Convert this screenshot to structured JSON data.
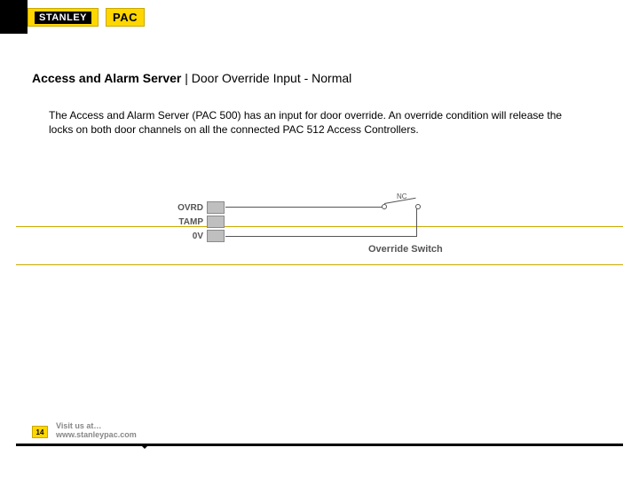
{
  "brand": {
    "stanley": "STANLEY",
    "pac": "PAC"
  },
  "heading": {
    "bold": "Access and Alarm Server",
    "rest": " | Door Override Input - Normal"
  },
  "paragraph": "The Access and Alarm Server (PAC 500) has an input for door override. An override condition will release the locks on both door channels on all the connected PAC 512 Access Controllers.",
  "diagram": {
    "type": "schematic",
    "terminal_labels": [
      "OVRD",
      "TAMP",
      "0V"
    ],
    "switch_label": "Override Switch",
    "switch_type_label": "NC",
    "connector_color": "#bfbfbf",
    "connector_border": "#8a8a8a",
    "wire_color": "#555555",
    "label_color": "#555555",
    "band_border_color": "#c9a800",
    "label_fontsize": 10
  },
  "footer": {
    "page_number": "14",
    "visit_line1": "Visit us at…",
    "visit_line2": "www.stanleypac.com"
  },
  "colors": {
    "brand_yellow": "#ffd600",
    "brand_yellow_border": "#c9a800",
    "black": "#000000",
    "white": "#ffffff"
  }
}
